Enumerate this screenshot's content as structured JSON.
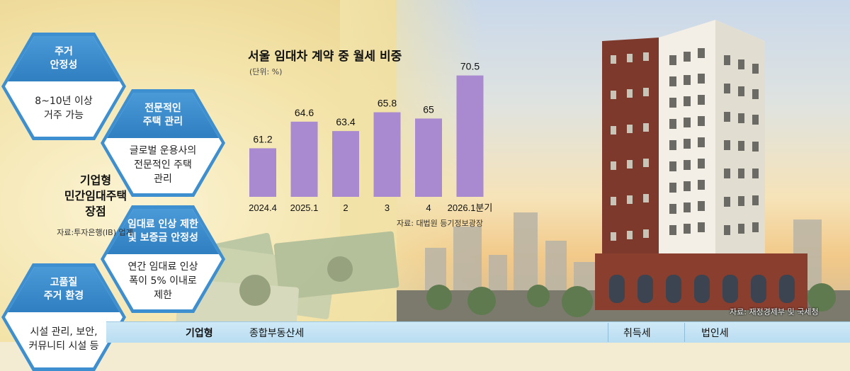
{
  "hexagons": [
    {
      "title_lines": [
        "주거",
        "안정성"
      ],
      "body_lines": [
        "8~10년 이상",
        "거주 가능"
      ]
    },
    {
      "title_lines": [
        "전문적인",
        "주택 관리"
      ],
      "body_lines": [
        "글로벌 운용사의",
        "전문적인 주택",
        "관리"
      ]
    },
    {
      "title_lines": [
        "임대료 인상 제한",
        "및 보증금 안정성"
      ],
      "body_lines": [
        "연간 임대료 인상",
        "폭이 5% 이내로",
        "제한"
      ]
    },
    {
      "title_lines": [
        "고품질",
        "주거 환경"
      ],
      "body_lines": [
        "시설 관리, 보안,",
        "커뮤니티 시설 등"
      ]
    }
  ],
  "center": {
    "title_lines": [
      "기업형",
      "민간임대주택",
      "장점"
    ],
    "source": "자료:투자은행(IB) 업계"
  },
  "chart_data": {
    "type": "bar",
    "title": "서울 임대차 계약 중 월세 비중",
    "unit": "(단위: %)",
    "categories": [
      "2024.4",
      "2025.1",
      "2",
      "3",
      "4",
      "2026.1분기"
    ],
    "values": [
      61.2,
      64.6,
      63.4,
      65.8,
      65,
      70.5
    ],
    "value_labels": [
      "61.2",
      "64.6",
      "63.4",
      "65.8",
      "65",
      "70.5"
    ],
    "ylim": [
      55,
      72
    ],
    "grid": false,
    "legend": "none",
    "bar_color": "#a98ad0",
    "source": "자료: 대법원 등기정보광장"
  },
  "photo_source": "자료: 재정경제부 및 국세청",
  "bottom_bar": {
    "labels": [
      "기업형",
      "종합부동산세",
      "취득세",
      "법인세"
    ]
  },
  "colors": {
    "hex_blue": "#3d8fd0",
    "bottom_bar": "#c4e3f4"
  }
}
